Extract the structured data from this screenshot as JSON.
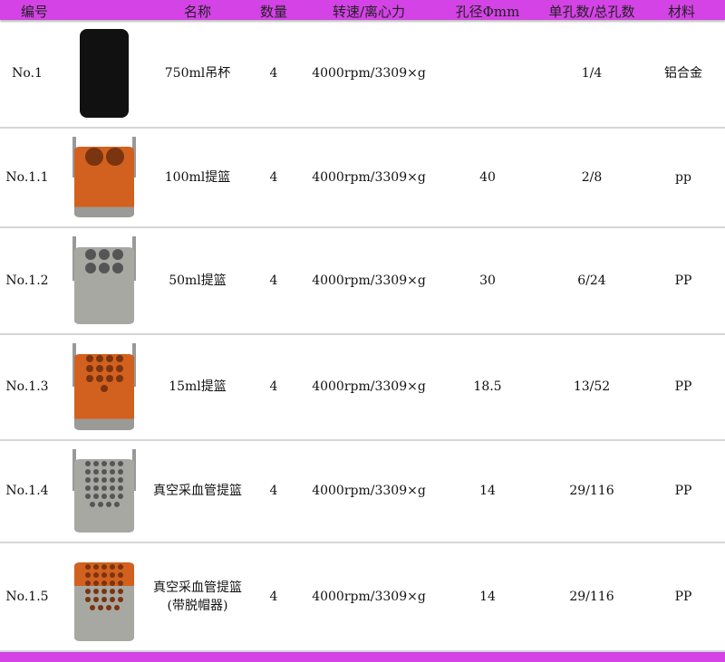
{
  "header": {
    "id": "编号",
    "name": "名称",
    "qty": "数量",
    "speed": "转速/离心力",
    "bore": "孔径Φmm",
    "holes": "单孔数/总孔数",
    "material": "材料"
  },
  "colors": {
    "accent": "#d443e6",
    "orange": "#d2611f",
    "gray": "#a7a8a2"
  },
  "rows": [
    {
      "id": "No.1",
      "name": "750ml吊杯",
      "name2": "",
      "qty": "4",
      "speed": "4000rpm/3309×g",
      "bore": "",
      "holes": "1/4",
      "material": "铝合金",
      "image": "black-bucket"
    },
    {
      "id": "No.1.1",
      "name": "100ml提篮",
      "name2": "",
      "qty": "4",
      "speed": "4000rpm/3309×g",
      "bore": "40",
      "holes": "2/8",
      "material": "pp",
      "image": "orange-basket-2-holes"
    },
    {
      "id": "No.1.2",
      "name": "50ml提篮",
      "name2": "",
      "qty": "4",
      "speed": "4000rpm/3309×g",
      "bore": "30",
      "holes": "6/24",
      "material": "PP",
      "image": "gray-basket-6-holes"
    },
    {
      "id": "No.1.3",
      "name": "15ml提篮",
      "name2": "",
      "qty": "4",
      "speed": "4000rpm/3309×g",
      "bore": "18.5",
      "holes": "13/52",
      "material": "PP",
      "image": "orange-basket-13-holes"
    },
    {
      "id": "No.1.4",
      "name": "真空采血管提篮",
      "name2": "",
      "qty": "4",
      "speed": "4000rpm/3309×g",
      "bore": "14",
      "holes": "29/116",
      "material": "PP",
      "image": "gray-basket-29-holes"
    },
    {
      "id": "No.1.5",
      "name": "真空采血管提篮",
      "name2": "(带脱帽器)",
      "qty": "4",
      "speed": "4000rpm/3309×g",
      "bore": "14",
      "holes": "29/116",
      "material": "PP",
      "image": "orange-gray-basket-decapper"
    }
  ]
}
